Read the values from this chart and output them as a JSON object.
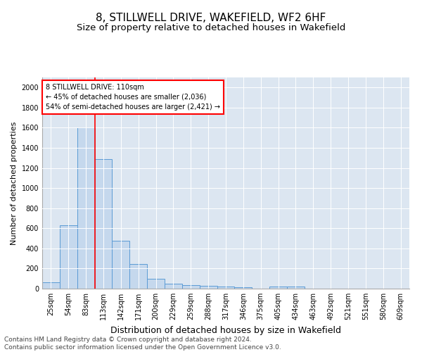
{
  "title": "8, STILLWELL DRIVE, WAKEFIELD, WF2 6HF",
  "subtitle": "Size of property relative to detached houses in Wakefield",
  "xlabel": "Distribution of detached houses by size in Wakefield",
  "ylabel": "Number of detached properties",
  "categories": [
    "25sqm",
    "54sqm",
    "83sqm",
    "113sqm",
    "142sqm",
    "171sqm",
    "200sqm",
    "229sqm",
    "259sqm",
    "288sqm",
    "317sqm",
    "346sqm",
    "375sqm",
    "405sqm",
    "434sqm",
    "463sqm",
    "492sqm",
    "521sqm",
    "551sqm",
    "580sqm",
    "609sqm"
  ],
  "values": [
    60,
    630,
    1600,
    1290,
    475,
    248,
    100,
    50,
    35,
    25,
    20,
    15,
    0,
    18,
    18,
    0,
    0,
    0,
    0,
    0,
    0
  ],
  "bar_color": "#c5d8ed",
  "bar_edge_color": "#5b9bd5",
  "bg_color": "#dce6f1",
  "red_line_index": 2,
  "annotation_text": "8 STILLWELL DRIVE: 110sqm\n← 45% of detached houses are smaller (2,036)\n54% of semi-detached houses are larger (2,421) →",
  "ylim": [
    0,
    2100
  ],
  "yticks": [
    0,
    200,
    400,
    600,
    800,
    1000,
    1200,
    1400,
    1600,
    1800,
    2000
  ],
  "footer_line1": "Contains HM Land Registry data © Crown copyright and database right 2024.",
  "footer_line2": "Contains public sector information licensed under the Open Government Licence v3.0.",
  "title_fontsize": 11,
  "subtitle_fontsize": 9.5,
  "xlabel_fontsize": 9,
  "ylabel_fontsize": 8,
  "tick_fontsize": 7,
  "annot_fontsize": 7,
  "footer_fontsize": 6.5
}
